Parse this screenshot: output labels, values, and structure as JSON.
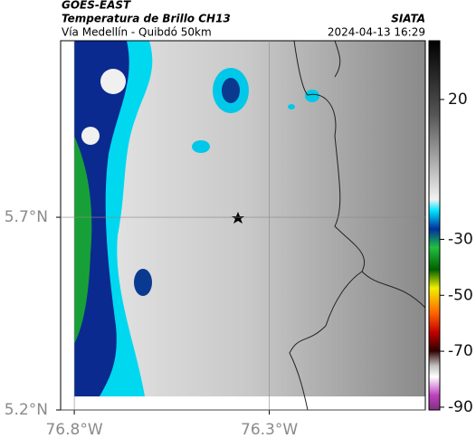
{
  "header": {
    "source": "GOES-EAST",
    "title": "Temperatura de Brillo CH13",
    "subtitle": "Vía Medellín - Quibdó 50km",
    "credit": "SIATA",
    "datetime": "2024-04-13 16:29"
  },
  "map": {
    "xlim": [
      -76.835,
      -75.9
    ],
    "ylim": [
      5.2,
      6.158
    ],
    "xticks": [
      {
        "value": -76.8,
        "label": "76.8°W"
      },
      {
        "value": -76.3,
        "label": "76.3°W"
      }
    ],
    "yticks": [
      {
        "value": 5.7,
        "label": "5.7°N"
      },
      {
        "value": 5.2,
        "label": "5.2°N"
      }
    ]
  },
  "colorbar": {
    "lim": [
      41,
      -91
    ],
    "ticks": [
      20,
      -30,
      -50,
      -70,
      -90
    ]
  }
}
